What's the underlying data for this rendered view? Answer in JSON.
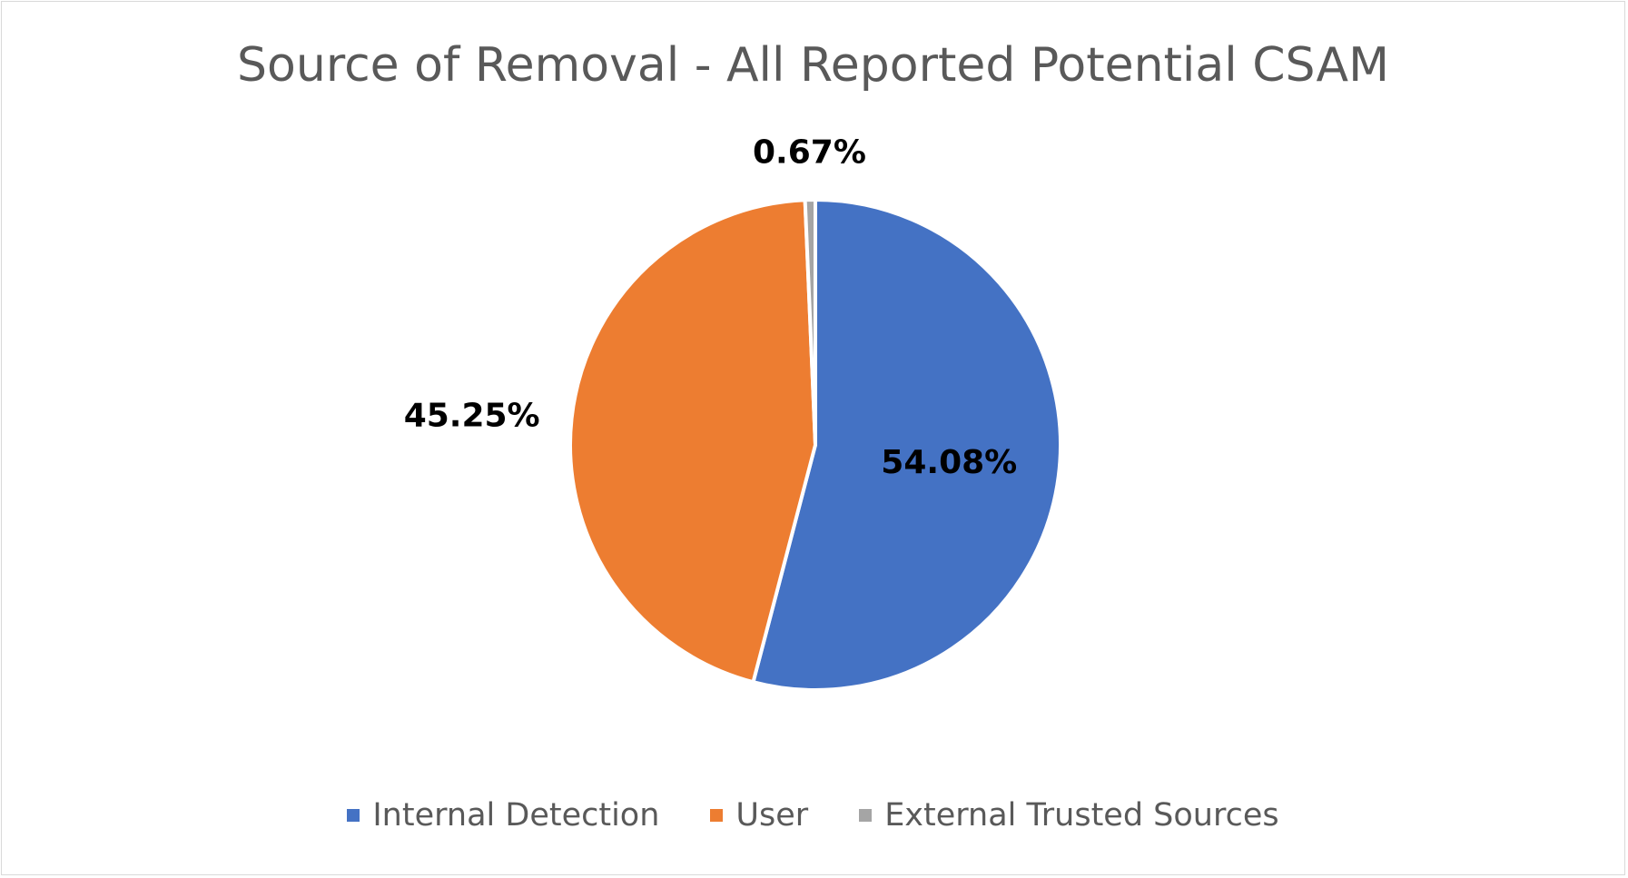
{
  "chart_data": {
    "type": "pie",
    "title": "Source of Removal - All Reported Potential CSAM",
    "categories": [
      "Internal Detection",
      "User",
      "External Trusted Sources"
    ],
    "values": [
      54.08,
      45.25,
      0.67
    ],
    "value_labels": [
      "54.08%",
      "45.25%",
      "0.67%"
    ],
    "colors": [
      "#4472c4",
      "#ed7d31",
      "#a5a5a5"
    ],
    "legend_position": "bottom",
    "start_angle": "12 o'clock",
    "direction": "clockwise"
  }
}
